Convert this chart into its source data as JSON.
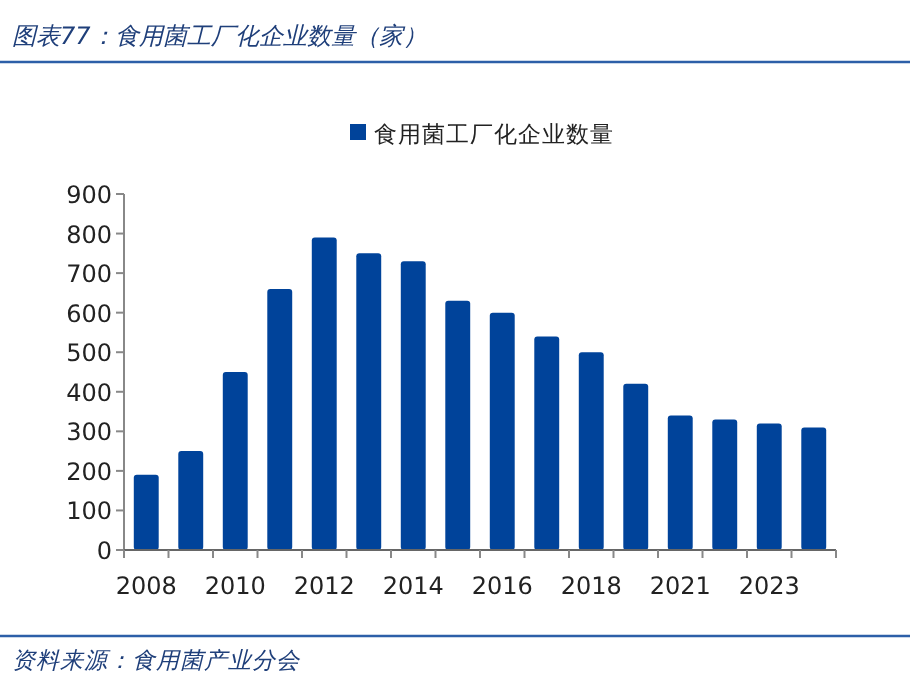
{
  "chart_data": {
    "type": "bar",
    "title": "图表77：食用菌工厂化企业数量（家）",
    "categories": [
      "2008",
      null,
      "2010",
      null,
      "2012",
      null,
      "2014",
      null,
      "2016",
      null,
      "2018",
      null,
      "2021",
      null,
      "2023",
      null
    ],
    "series": [
      {
        "name": "食用菌工厂化企业数量",
        "color": "#00439a",
        "values": [
          190,
          250,
          450,
          660,
          790,
          750,
          730,
          630,
          600,
          540,
          500,
          420,
          340,
          330,
          320,
          310
        ]
      }
    ],
    "ylim": [
      0,
      900
    ],
    "yticks": [
      0,
      100,
      200,
      300,
      400,
      500,
      600,
      700,
      800,
      900
    ],
    "grid": false,
    "legend": "top",
    "annotations": [
      "资料来源：食用菌产业分会"
    ]
  }
}
